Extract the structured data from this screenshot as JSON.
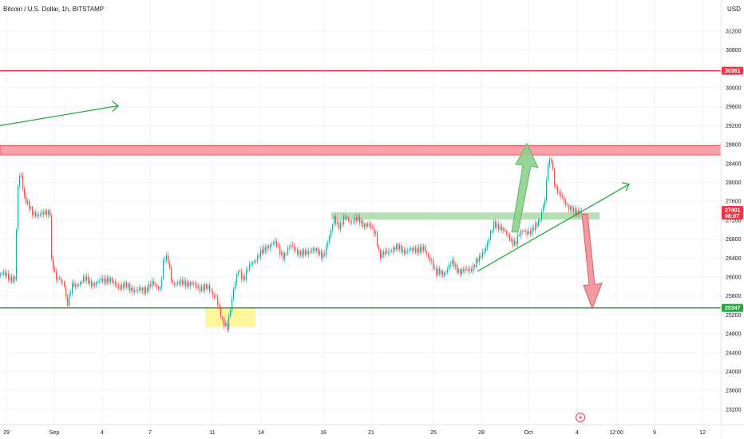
{
  "header": {
    "title": "Bitcoin / U.S. Dollar, 1h, BITSTAMP",
    "currency": "USD"
  },
  "chart_data": {
    "type": "candlestick",
    "symbol": "Bitcoin / U.S. Dollar",
    "interval": "1h",
    "exchange": "BITSTAMP",
    "y_ticks": [
      23200,
      23600,
      24000,
      24400,
      24800,
      25200,
      25600,
      26000,
      26400,
      26800,
      27200,
      27600,
      28000,
      28400,
      28800,
      29200,
      29600,
      30000,
      30800,
      31200
    ],
    "x_ticks": [
      "29",
      "Sep",
      "4",
      "7",
      "11",
      "14",
      "18",
      "21",
      "25",
      "28",
      "Oct",
      "4",
      "12:00",
      "9",
      "12"
    ],
    "ylim": [
      22900,
      31550
    ],
    "price_badges": [
      {
        "label": "30361",
        "value": 30361,
        "color": "#f23645"
      },
      {
        "label": "27401",
        "sub": "08:07",
        "value": 27401,
        "color": "#f23645"
      },
      {
        "label": "25347",
        "value": 25347,
        "color": "#22ab3b"
      }
    ],
    "horizontal_lines": [
      {
        "value": 30361,
        "color": "#f23645"
      },
      {
        "value": 25347,
        "color": "#22ab3b"
      }
    ],
    "zones": [
      {
        "from": 28580,
        "to": 28780,
        "color": "#f7a1a8",
        "role": "resistance"
      },
      {
        "from": 27250,
        "to": 27330,
        "color": "#a8d9a8",
        "role": "support"
      },
      {
        "from": 24940,
        "to": 25340,
        "color": "#fff59a",
        "role": "highlight"
      }
    ],
    "price_path": [
      [
        0,
        26050
      ],
      [
        10,
        26020
      ],
      [
        18,
        25980
      ],
      [
        22,
        27900
      ],
      [
        25,
        28200
      ],
      [
        30,
        27700
      ],
      [
        40,
        27350
      ],
      [
        55,
        27300
      ],
      [
        62,
        27400
      ],
      [
        64,
        26400
      ],
      [
        70,
        25950
      ],
      [
        80,
        25850
      ],
      [
        83,
        25400
      ],
      [
        90,
        25820
      ],
      [
        105,
        25920
      ],
      [
        120,
        25880
      ],
      [
        135,
        25950
      ],
      [
        150,
        25800
      ],
      [
        165,
        25760
      ],
      [
        180,
        25700
      ],
      [
        190,
        25860
      ],
      [
        200,
        25800
      ],
      [
        205,
        26400
      ],
      [
        210,
        26300
      ],
      [
        215,
        25900
      ],
      [
        235,
        25850
      ],
      [
        255,
        25780
      ],
      [
        270,
        25600
      ],
      [
        278,
        25050
      ],
      [
        284,
        24950
      ],
      [
        288,
        25300
      ],
      [
        292,
        25700
      ],
      [
        298,
        26200
      ],
      [
        305,
        25950
      ],
      [
        315,
        26300
      ],
      [
        325,
        26500
      ],
      [
        335,
        26650
      ],
      [
        345,
        26700
      ],
      [
        355,
        26450
      ],
      [
        365,
        26650
      ],
      [
        375,
        26500
      ],
      [
        390,
        26550
      ],
      [
        405,
        26500
      ],
      [
        412,
        26800
      ],
      [
        418,
        27250
      ],
      [
        425,
        27050
      ],
      [
        432,
        27300
      ],
      [
        440,
        27150
      ],
      [
        450,
        27200
      ],
      [
        460,
        27100
      ],
      [
        470,
        26900
      ],
      [
        475,
        26450
      ],
      [
        485,
        26550
      ],
      [
        500,
        26600
      ],
      [
        515,
        26550
      ],
      [
        530,
        26600
      ],
      [
        540,
        26350
      ],
      [
        545,
        26050
      ],
      [
        555,
        26100
      ],
      [
        565,
        26300
      ],
      [
        575,
        26100
      ],
      [
        590,
        26200
      ],
      [
        600,
        26350
      ],
      [
        610,
        26750
      ],
      [
        618,
        27100
      ],
      [
        625,
        27050
      ],
      [
        635,
        26900
      ],
      [
        645,
        26700
      ],
      [
        655,
        27000
      ],
      [
        665,
        26950
      ],
      [
        675,
        27200
      ],
      [
        682,
        27600
      ],
      [
        686,
        28400
      ],
      [
        690,
        28550
      ],
      [
        695,
        27900
      ],
      [
        700,
        27700
      ],
      [
        706,
        27600
      ],
      [
        712,
        27500
      ],
      [
        720,
        27350
      ],
      [
        728,
        27401
      ]
    ],
    "annotations": [
      {
        "type": "arrow-line",
        "color": "#22ab3b",
        "from": [
          0,
          29200
        ],
        "to": [
          148,
          29620
        ]
      },
      {
        "type": "trendline-arrow",
        "color": "#22ab3b",
        "from": [
          598,
          26120
        ],
        "to": [
          788,
          27960
        ]
      },
      {
        "type": "fat-arrow-up",
        "color": "#8ed08e",
        "from": [
          645,
          26950
        ],
        "to": [
          660,
          28820
        ]
      },
      {
        "type": "fat-arrow-down",
        "color": "#f28f96",
        "from": [
          732,
          27330
        ],
        "to": [
          742,
          25330
        ]
      }
    ],
    "flash_icon": "lightning-icon"
  }
}
